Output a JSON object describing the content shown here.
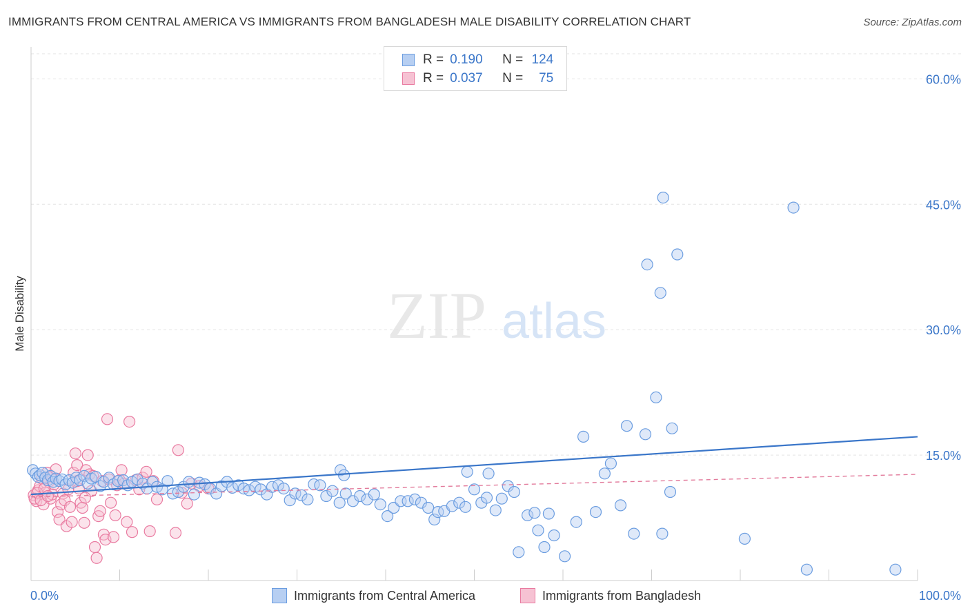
{
  "title": "IMMIGRANTS FROM CENTRAL AMERICA VS IMMIGRANTS FROM BANGLADESH MALE DISABILITY CORRELATION CHART",
  "source": "Source: ZipAtlas.com",
  "watermark": {
    "zip": "ZIP",
    "atlas": "atlas"
  },
  "legend": {
    "r_label": "R =",
    "n_label": "N =",
    "series1": {
      "r": "0.190",
      "n": "124"
    },
    "series2": {
      "r": "0.037",
      "n": "75"
    }
  },
  "colors": {
    "blue": "#6b9de0",
    "blue_fill": "#b7cff2",
    "blue_line": "#3a76c9",
    "pink": "#e97aa0",
    "pink_fill": "#f6c2d3",
    "pink_line": "#e27a9b",
    "tick_label": "#3a76c9"
  },
  "chart_data": {
    "type": "scatter",
    "title": "IMMIGRANTS FROM CENTRAL AMERICA VS IMMIGRANTS FROM BANGLADESH MALE DISABILITY CORRELATION CHART",
    "xlabel": "",
    "ylabel": "Male Disability",
    "xlim": [
      0,
      100
    ],
    "ylim": [
      0,
      63
    ],
    "x_tick_labels": [
      "0.0%",
      "100.0%"
    ],
    "y_ticks": [
      15,
      30,
      45,
      60
    ],
    "y_tick_labels": [
      "15.0%",
      "30.0%",
      "45.0%",
      "60.0%"
    ],
    "grid": true,
    "series": [
      {
        "name": "Immigrants from Central America",
        "color": "blue",
        "trend": {
          "x": [
            0,
            100
          ],
          "y": [
            10.3,
            17.2
          ],
          "style": "solid"
        },
        "points": [
          [
            0.2,
            13.2
          ],
          [
            0.5,
            12.8
          ],
          [
            0.8,
            12.4
          ],
          [
            1,
            12.6
          ],
          [
            1.3,
            12.9
          ],
          [
            1.6,
            12.3
          ],
          [
            1.9,
            12.0
          ],
          [
            2.2,
            12.5
          ],
          [
            2.5,
            11.8
          ],
          [
            2.8,
            12.2
          ],
          [
            3.2,
            11.9
          ],
          [
            3.5,
            12.1
          ],
          [
            3.9,
            11.5
          ],
          [
            4.3,
            12.0
          ],
          [
            4.7,
            11.7
          ],
          [
            5.1,
            12.3
          ],
          [
            5.5,
            12.0
          ],
          [
            6,
            12.5
          ],
          [
            6.4,
            11.6
          ],
          [
            6.8,
            12.2
          ],
          [
            7.3,
            12.4
          ],
          [
            7.8,
            11.3
          ],
          [
            8.2,
            11.8
          ],
          [
            8.8,
            12.3
          ],
          [
            9.3,
            11.5
          ],
          [
            9.8,
            11.9
          ],
          [
            10.4,
            12.0
          ],
          [
            10.9,
            11.4
          ],
          [
            11.4,
            11.8
          ],
          [
            12,
            12.1
          ],
          [
            12.6,
            11.6
          ],
          [
            13.1,
            11.0
          ],
          [
            13.7,
            11.8
          ],
          [
            14.2,
            11.2
          ],
          [
            14.8,
            10.9
          ],
          [
            15.4,
            11.9
          ],
          [
            16,
            10.4
          ],
          [
            16.6,
            10.6
          ],
          [
            17.2,
            11.2
          ],
          [
            17.8,
            11.8
          ],
          [
            18.4,
            10.3
          ],
          [
            19,
            11.7
          ],
          [
            19.6,
            11.5
          ],
          [
            20.2,
            11.0
          ],
          [
            20.9,
            10.4
          ],
          [
            21.5,
            11.3
          ],
          [
            22.1,
            11.8
          ],
          [
            22.7,
            11.1
          ],
          [
            23.4,
            11.4
          ],
          [
            24,
            11.0
          ],
          [
            24.6,
            10.8
          ],
          [
            25.3,
            11.2
          ],
          [
            25.9,
            10.9
          ],
          [
            26.6,
            10.3
          ],
          [
            27.2,
            11.2
          ],
          [
            27.9,
            11.4
          ],
          [
            28.5,
            11.0
          ],
          [
            29.2,
            9.6
          ],
          [
            29.8,
            10.4
          ],
          [
            30.5,
            10.2
          ],
          [
            31.2,
            9.7
          ],
          [
            31.9,
            11.5
          ],
          [
            32.6,
            11.4
          ],
          [
            33.3,
            10.1
          ],
          [
            34,
            10.7
          ],
          [
            34.8,
            9.3
          ],
          [
            35.5,
            10.4
          ],
          [
            36.3,
            9.5
          ],
          [
            37.1,
            10.1
          ],
          [
            37.9,
            9.7
          ],
          [
            38.7,
            10.3
          ],
          [
            34.9,
            13.2
          ],
          [
            35.3,
            12.6
          ],
          [
            39.4,
            9.1
          ],
          [
            40.2,
            7.7
          ],
          [
            40.9,
            8.7
          ],
          [
            41.7,
            9.5
          ],
          [
            42.5,
            9.5
          ],
          [
            43.3,
            9.7
          ],
          [
            44,
            9.3
          ],
          [
            44.8,
            8.7
          ],
          [
            45.5,
            7.3
          ],
          [
            45.9,
            8.2
          ],
          [
            46.6,
            8.3
          ],
          [
            47.5,
            8.9
          ],
          [
            48.3,
            9.3
          ],
          [
            49,
            8.8
          ],
          [
            49.2,
            13.0
          ],
          [
            50,
            10.9
          ],
          [
            50.8,
            9.3
          ],
          [
            51.6,
            12.8
          ],
          [
            51.4,
            9.9
          ],
          [
            52.4,
            8.4
          ],
          [
            53.1,
            9.8
          ],
          [
            53.8,
            11.3
          ],
          [
            54.5,
            10.6
          ],
          [
            55,
            3.4
          ],
          [
            56,
            7.8
          ],
          [
            56.8,
            8.1
          ],
          [
            57.2,
            6.0
          ],
          [
            57.9,
            4.0
          ],
          [
            58.4,
            8.0
          ],
          [
            59,
            5.4
          ],
          [
            60.2,
            2.9
          ],
          [
            61.5,
            7.0
          ],
          [
            62.3,
            17.2
          ],
          [
            63.7,
            8.2
          ],
          [
            64.7,
            12.8
          ],
          [
            65.4,
            14.0
          ],
          [
            66.5,
            9.0
          ],
          [
            67.2,
            18.5
          ],
          [
            68,
            5.6
          ],
          [
            69.3,
            17.5
          ],
          [
            70.5,
            21.9
          ],
          [
            71,
            34.4
          ],
          [
            72.3,
            18.2
          ],
          [
            72.1,
            10.6
          ],
          [
            71.3,
            45.8
          ],
          [
            71.2,
            5.6
          ],
          [
            69.5,
            37.8
          ],
          [
            72.9,
            39.0
          ],
          [
            86,
            44.6
          ],
          [
            80.5,
            5.0
          ],
          [
            87.5,
            1.3
          ],
          [
            97.5,
            1.3
          ]
        ]
      },
      {
        "name": "Immigrants from Bangladesh",
        "color": "pink",
        "trend": {
          "x": [
            0,
            100
          ],
          "y": [
            10.0,
            12.7
          ],
          "style": "dashed"
        },
        "points": [
          [
            0.3,
            10.2
          ],
          [
            0.6,
            9.5
          ],
          [
            0.8,
            10.8
          ],
          [
            1,
            11.3
          ],
          [
            1.2,
            12.2
          ],
          [
            1.4,
            9.1
          ],
          [
            1.6,
            10.5
          ],
          [
            1.8,
            12.9
          ],
          [
            2,
            11.8
          ],
          [
            2.2,
            9.8
          ],
          [
            2.4,
            10.3
          ],
          [
            0.4,
            9.8
          ],
          [
            0.7,
            10.5
          ],
          [
            1.1,
            9.6
          ],
          [
            1.5,
            11.0
          ],
          [
            1.9,
            10.1
          ],
          [
            2.3,
            12.4
          ],
          [
            2.6,
            11.5
          ],
          [
            2.8,
            13.3
          ],
          [
            3,
            8.2
          ],
          [
            3.2,
            7.3
          ],
          [
            3.4,
            9.1
          ],
          [
            3.6,
            10.4
          ],
          [
            3.8,
            9.6
          ],
          [
            4,
            6.5
          ],
          [
            4.2,
            10.9
          ],
          [
            4.4,
            8.8
          ],
          [
            4.6,
            7.0
          ],
          [
            4.8,
            12.9
          ],
          [
            5,
            15.2
          ],
          [
            5.2,
            13.8
          ],
          [
            5.4,
            11.0
          ],
          [
            5.6,
            9.3
          ],
          [
            5.8,
            8.7
          ],
          [
            6,
            6.9
          ],
          [
            6.2,
            13.2
          ],
          [
            6.4,
            15.0
          ],
          [
            6.6,
            12.7
          ],
          [
            6.8,
            10.7
          ],
          [
            7,
            12.5
          ],
          [
            7.2,
            4.0
          ],
          [
            7.4,
            2.7
          ],
          [
            7.6,
            7.7
          ],
          [
            7.8,
            8.3
          ],
          [
            8,
            11.9
          ],
          [
            8.2,
            5.5
          ],
          [
            8.4,
            4.9
          ],
          [
            8.6,
            19.3
          ],
          [
            8.8,
            12.1
          ],
          [
            9,
            9.3
          ],
          [
            9.3,
            5.2
          ],
          [
            9.5,
            7.8
          ],
          [
            9.7,
            11.4
          ],
          [
            10,
            12.0
          ],
          [
            10.2,
            13.2
          ],
          [
            10.5,
            11.6
          ],
          [
            10.8,
            7.0
          ],
          [
            11.1,
            19.0
          ],
          [
            11.4,
            5.8
          ],
          [
            11.8,
            12.0
          ],
          [
            12.2,
            10.9
          ],
          [
            12.6,
            12.3
          ],
          [
            13,
            13.0
          ],
          [
            13.4,
            5.9
          ],
          [
            13.8,
            11.9
          ],
          [
            14.2,
            9.7
          ],
          [
            16.3,
            5.7
          ],
          [
            16.6,
            15.6
          ],
          [
            17,
            10.5
          ],
          [
            17.6,
            9.2
          ],
          [
            18.1,
            11.6
          ],
          [
            19,
            11.3
          ],
          [
            20,
            11.0
          ],
          [
            5.2,
            11.9
          ],
          [
            6.1,
            9.9
          ]
        ]
      }
    ]
  },
  "bottom_legend": {
    "item1": "Immigrants from Central America",
    "item2": "Immigrants from Bangladesh"
  }
}
